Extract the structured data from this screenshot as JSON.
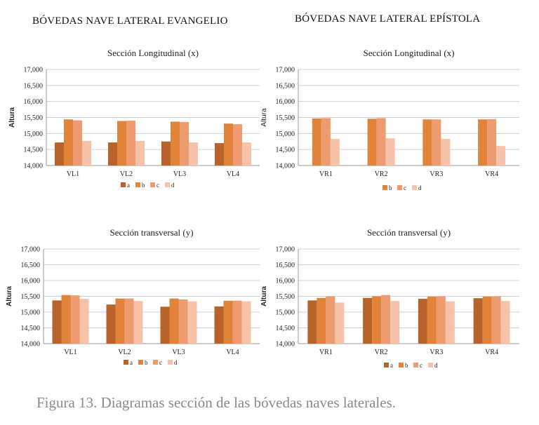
{
  "headings": {
    "left": "BÓVEDAS NAVE LATERAL EVANGELIO",
    "right": "BÓVEDAS NAVE LATERAL EPÍSTOLA"
  },
  "caption": "Figura 13. Diagramas sección de las bóvedas naves laterales.",
  "colors": {
    "a": "#b8632a",
    "b": "#e2833a",
    "c": "#ee9b6f",
    "d": "#f6c2a8"
  },
  "chart_data": [
    {
      "type": "bar",
      "title": "Sección Longitudinal (x)",
      "ylabel": "Altura",
      "ylim": [
        14000,
        17000
      ],
      "yticks": [
        "14,000",
        "14,500",
        "15,000",
        "15,500",
        "16,000",
        "16,500",
        "17,000"
      ],
      "categories": [
        "VL1",
        "VL2",
        "VL3",
        "VL4"
      ],
      "series": [
        {
          "name": "a",
          "values": [
            14720,
            14720,
            14750,
            14700
          ]
        },
        {
          "name": "b",
          "values": [
            15440,
            15390,
            15370,
            15310
          ]
        },
        {
          "name": "c",
          "values": [
            15410,
            15400,
            15360,
            15290
          ]
        },
        {
          "name": "d",
          "values": [
            14770,
            14770,
            14720,
            14720
          ]
        }
      ],
      "legend": "bottom"
    },
    {
      "type": "bar",
      "title": "Sección Longitudinal (x)",
      "ylabel": "Altura",
      "ylim": [
        14000,
        17000
      ],
      "yticks": [
        "14,000",
        "14,500",
        "15,000",
        "15,500",
        "16,000",
        "16,500",
        "17,000"
      ],
      "categories": [
        "VR1",
        "VR2",
        "VR3",
        "VR4"
      ],
      "series": [
        {
          "name": "b",
          "values": [
            15470,
            15460,
            15440,
            15440
          ]
        },
        {
          "name": "c",
          "values": [
            15480,
            15480,
            15440,
            15450
          ]
        },
        {
          "name": "d",
          "values": [
            14830,
            14850,
            14830,
            14610
          ]
        }
      ],
      "legend": "bottom"
    },
    {
      "type": "bar",
      "title": "Sección transversal (y)",
      "ylabel": "Altura",
      "ylim": [
        14000,
        17000
      ],
      "yticks": [
        "14,000",
        "14,500",
        "15,000",
        "15,500",
        "16,000",
        "16,500",
        "17,000"
      ],
      "categories": [
        "VL1",
        "VL2",
        "VL3",
        "VL4"
      ],
      "series": [
        {
          "name": "a",
          "values": [
            15370,
            15240,
            15170,
            15180
          ]
        },
        {
          "name": "b",
          "values": [
            15540,
            15430,
            15430,
            15360
          ]
        },
        {
          "name": "c",
          "values": [
            15530,
            15430,
            15400,
            15360
          ]
        },
        {
          "name": "d",
          "values": [
            15420,
            15350,
            15340,
            15340
          ]
        }
      ],
      "legend": "bottom"
    },
    {
      "type": "bar",
      "title": "Sección transversal (y)",
      "ylabel": "Altura",
      "ylim": [
        14000,
        17000
      ],
      "yticks": [
        "14,000",
        "14,500",
        "15,000",
        "15,500",
        "16,000",
        "16,500",
        "17,000"
      ],
      "categories": [
        "VR1",
        "VR2",
        "VR3",
        "VR4"
      ],
      "series": [
        {
          "name": "a",
          "values": [
            15370,
            15450,
            15420,
            15440
          ]
        },
        {
          "name": "b",
          "values": [
            15450,
            15500,
            15490,
            15490
          ]
        },
        {
          "name": "c",
          "values": [
            15500,
            15540,
            15500,
            15500
          ]
        },
        {
          "name": "d",
          "values": [
            15300,
            15350,
            15340,
            15350
          ]
        }
      ],
      "legend": "bottom"
    }
  ]
}
